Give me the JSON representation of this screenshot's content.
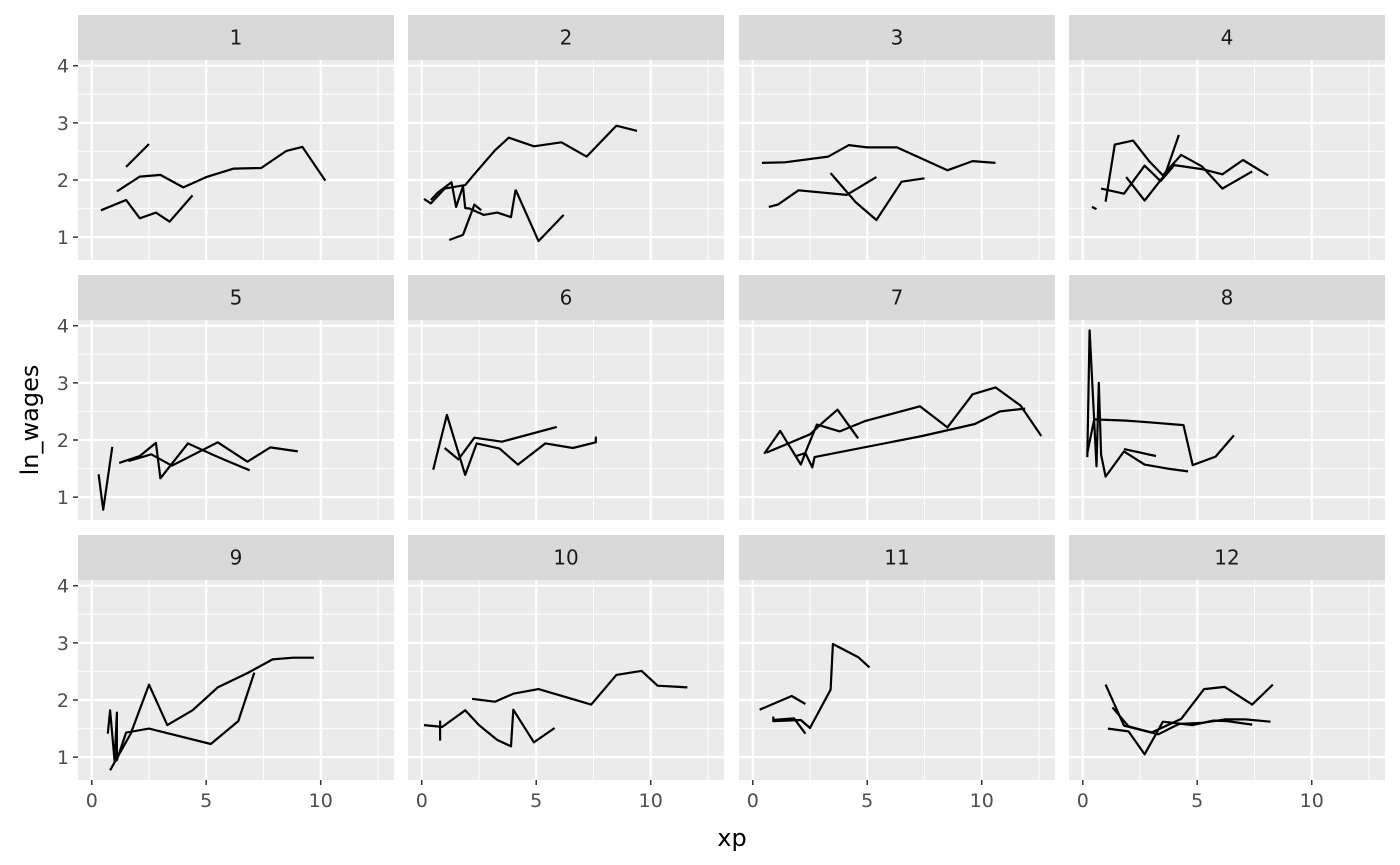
{
  "chart_data": {
    "type": "line",
    "xlabel": "xp",
    "ylabel": "ln_wages",
    "xlim": [
      -0.6,
      13.2
    ],
    "ylim": [
      0.6,
      4.1
    ],
    "x_ticks": [
      0,
      5,
      10
    ],
    "y_ticks": [
      1,
      2,
      3,
      4
    ],
    "grid": true,
    "panel_background": "#EBEBEB",
    "strip_background": "#D9D9D9",
    "line_color": "#000000",
    "facets": [
      {
        "label": "1",
        "lines": [
          [
            [
              0.4,
              1.47
            ],
            [
              1.5,
              1.65
            ],
            [
              2.1,
              1.33
            ],
            [
              2.8,
              1.43
            ],
            [
              3.4,
              1.27
            ],
            [
              4.4,
              1.73
            ]
          ],
          [
            [
              1.1,
              1.8
            ],
            [
              2.1,
              2.06
            ],
            [
              3.0,
              2.09
            ],
            [
              4.0,
              1.87
            ],
            [
              5.0,
              2.05
            ],
            [
              6.2,
              2.2
            ],
            [
              7.4,
              2.21
            ],
            [
              8.5,
              2.51
            ],
            [
              9.2,
              2.58
            ],
            [
              10.2,
              1.99
            ]
          ],
          [
            [
              1.5,
              2.23
            ],
            [
              2.5,
              2.63
            ]
          ]
        ]
      },
      {
        "label": "2",
        "lines": [
          [
            [
              0.1,
              1.67
            ],
            [
              0.4,
              1.59
            ],
            [
              1.0,
              1.85
            ],
            [
              1.9,
              1.91
            ],
            [
              2.4,
              2.15
            ],
            [
              3.2,
              2.52
            ],
            [
              3.8,
              2.74
            ],
            [
              4.9,
              2.59
            ],
            [
              6.1,
              2.66
            ],
            [
              7.2,
              2.41
            ],
            [
              8.5,
              2.95
            ],
            [
              9.4,
              2.86
            ]
          ],
          [
            [
              0.4,
              1.65
            ],
            [
              0.7,
              1.78
            ],
            [
              1.3,
              1.96
            ],
            [
              1.5,
              1.53
            ],
            [
              1.8,
              1.89
            ],
            [
              1.9,
              1.51
            ],
            [
              2.1,
              1.5
            ],
            [
              2.7,
              1.39
            ],
            [
              3.3,
              1.43
            ],
            [
              3.9,
              1.35
            ],
            [
              4.1,
              1.83
            ]
          ],
          [
            [
              1.2,
              0.95
            ],
            [
              1.8,
              1.04
            ],
            [
              2.3,
              1.57
            ],
            [
              2.6,
              1.47
            ]
          ],
          [
            [
              4.1,
              1.83
            ],
            [
              5.1,
              0.93
            ],
            [
              6.2,
              1.39
            ]
          ]
        ]
      },
      {
        "label": "3",
        "lines": [
          [
            [
              0.4,
              2.3
            ],
            [
              1.4,
              2.31
            ],
            [
              3.3,
              2.41
            ],
            [
              4.2,
              2.61
            ],
            [
              5.0,
              2.57
            ],
            [
              6.3,
              2.57
            ],
            [
              8.5,
              2.17
            ],
            [
              9.6,
              2.33
            ],
            [
              10.6,
              2.3
            ]
          ],
          [
            [
              0.7,
              1.53
            ],
            [
              1.1,
              1.57
            ],
            [
              2.0,
              1.82
            ],
            [
              4.1,
              1.74
            ],
            [
              5.4,
              2.05
            ]
          ],
          [
            [
              3.4,
              2.12
            ],
            [
              4.5,
              1.61
            ],
            [
              5.4,
              1.3
            ],
            [
              6.5,
              1.97
            ],
            [
              7.5,
              2.03
            ]
          ]
        ]
      },
      {
        "label": "4",
        "lines": [
          [
            [
              0.4,
              1.53
            ],
            [
              0.6,
              1.49
            ]
          ],
          [
            [
              0.8,
              1.85
            ],
            [
              1.8,
              1.76
            ],
            [
              2.7,
              2.25
            ],
            [
              3.4,
              1.98
            ],
            [
              4.0,
              2.26
            ],
            [
              5.2,
              2.19
            ],
            [
              6.1,
              2.1
            ],
            [
              7.0,
              2.35
            ],
            [
              8.1,
              2.08
            ]
          ],
          [
            [
              1.0,
              1.62
            ],
            [
              1.4,
              2.62
            ],
            [
              2.2,
              2.69
            ],
            [
              2.9,
              2.33
            ],
            [
              3.5,
              2.08
            ],
            [
              4.3,
              2.44
            ],
            [
              5.2,
              2.24
            ],
            [
              6.1,
              1.85
            ],
            [
              7.4,
              2.15
            ]
          ],
          [
            [
              1.9,
              2.05
            ],
            [
              2.7,
              1.64
            ],
            [
              3.6,
              2.1
            ],
            [
              4.2,
              2.79
            ]
          ]
        ]
      },
      {
        "label": "5",
        "lines": [
          [
            [
              0.3,
              1.4
            ],
            [
              0.5,
              0.78
            ],
            [
              0.9,
              1.88
            ]
          ],
          [
            [
              1.2,
              1.6
            ],
            [
              2.1,
              1.72
            ],
            [
              2.8,
              1.95
            ],
            [
              3.0,
              1.33
            ],
            [
              4.2,
              1.94
            ],
            [
              5.3,
              1.74
            ],
            [
              6.0,
              1.62
            ],
            [
              6.9,
              1.47
            ]
          ],
          [
            [
              1.6,
              1.63
            ],
            [
              2.6,
              1.75
            ],
            [
              3.5,
              1.55
            ],
            [
              5.5,
              1.96
            ],
            [
              6.8,
              1.62
            ],
            [
              7.8,
              1.87
            ],
            [
              9.0,
              1.8
            ]
          ]
        ]
      },
      {
        "label": "6",
        "lines": [
          [
            [
              0.5,
              1.48
            ],
            [
              1.1,
              2.44
            ],
            [
              1.9,
              1.39
            ],
            [
              2.4,
              1.94
            ],
            [
              3.4,
              1.85
            ],
            [
              4.2,
              1.57
            ],
            [
              5.4,
              1.94
            ],
            [
              6.6,
              1.86
            ],
            [
              7.6,
              1.96
            ],
            [
              7.6,
              2.06
            ]
          ],
          [
            [
              1.0,
              1.86
            ],
            [
              1.6,
              1.66
            ],
            [
              2.3,
              2.04
            ],
            [
              3.5,
              1.97
            ],
            [
              5.9,
              2.23
            ]
          ]
        ]
      },
      {
        "label": "7",
        "lines": [
          [
            [
              0.5,
              1.76
            ],
            [
              1.2,
              2.16
            ],
            [
              2.1,
              1.57
            ],
            [
              2.3,
              1.78
            ],
            [
              2.8,
              2.27
            ],
            [
              3.8,
              2.15
            ],
            [
              4.9,
              2.33
            ],
            [
              6.0,
              2.45
            ],
            [
              7.3,
              2.59
            ],
            [
              8.5,
              2.22
            ],
            [
              9.6,
              2.8
            ],
            [
              10.6,
              2.92
            ],
            [
              11.7,
              2.6
            ],
            [
              12.6,
              2.07
            ]
          ],
          [
            [
              0.6,
              1.78
            ],
            [
              2.5,
              2.1
            ],
            [
              3.1,
              2.32
            ],
            [
              3.7,
              2.53
            ],
            [
              4.6,
              2.03
            ]
          ],
          [
            [
              1.9,
              1.72
            ],
            [
              2.3,
              1.77
            ],
            [
              2.6,
              1.52
            ],
            [
              2.7,
              1.7
            ],
            [
              7.4,
              2.07
            ],
            [
              9.7,
              2.28
            ],
            [
              10.8,
              2.5
            ],
            [
              11.9,
              2.55
            ]
          ]
        ]
      },
      {
        "label": "8",
        "lines": [
          [
            [
              0.2,
              1.7
            ],
            [
              0.3,
              3.92
            ],
            [
              0.6,
              1.54
            ],
            [
              0.7,
              3.0
            ],
            [
              0.8,
              1.74
            ],
            [
              1.0,
              1.36
            ],
            [
              1.8,
              1.8
            ],
            [
              2.7,
              1.57
            ],
            [
              3.7,
              1.5
            ],
            [
              4.6,
              1.45
            ]
          ],
          [
            [
              0.2,
              1.77
            ],
            [
              0.5,
              2.36
            ],
            [
              1.9,
              2.34
            ],
            [
              2.9,
              2.31
            ],
            [
              4.4,
              2.26
            ],
            [
              4.8,
              1.56
            ],
            [
              5.8,
              1.71
            ],
            [
              6.6,
              2.08
            ]
          ],
          [
            [
              1.8,
              1.84
            ],
            [
              3.2,
              1.72
            ]
          ]
        ]
      },
      {
        "label": "9",
        "lines": [
          [
            [
              0.7,
              1.41
            ],
            [
              0.8,
              1.82
            ],
            [
              1.0,
              0.93
            ],
            [
              1.1,
              1.78
            ],
            [
              1.1,
              0.95
            ],
            [
              1.5,
              1.43
            ],
            [
              2.5,
              1.5
            ],
            [
              3.7,
              1.38
            ],
            [
              5.2,
              1.23
            ],
            [
              6.4,
              1.63
            ],
            [
              7.1,
              2.48
            ]
          ],
          [
            [
              0.8,
              0.77
            ],
            [
              1.7,
              1.41
            ],
            [
              2.5,
              2.27
            ],
            [
              3.3,
              1.56
            ],
            [
              4.4,
              1.82
            ],
            [
              5.5,
              2.22
            ],
            [
              6.8,
              2.47
            ],
            [
              7.9,
              2.71
            ],
            [
              8.8,
              2.74
            ],
            [
              9.7,
              2.74
            ]
          ]
        ]
      },
      {
        "label": "10",
        "lines": [
          [
            [
              0.1,
              1.56
            ],
            [
              0.9,
              1.53
            ],
            [
              1.9,
              1.82
            ],
            [
              2.5,
              1.56
            ],
            [
              3.3,
              1.3
            ],
            [
              3.9,
              1.19
            ],
            [
              4.0,
              1.83
            ],
            [
              4.9,
              1.26
            ],
            [
              5.8,
              1.51
            ]
          ],
          [
            [
              0.8,
              1.64
            ],
            [
              0.8,
              1.29
            ]
          ],
          [
            [
              2.2,
              2.02
            ],
            [
              3.2,
              1.97
            ],
            [
              4.0,
              2.11
            ],
            [
              5.1,
              2.19
            ],
            [
              7.4,
              1.92
            ],
            [
              8.5,
              2.44
            ],
            [
              9.6,
              2.51
            ],
            [
              10.3,
              2.25
            ],
            [
              11.6,
              2.22
            ]
          ]
        ]
      },
      {
        "label": "11",
        "lines": [
          [
            [
              0.3,
              1.83
            ],
            [
              1.7,
              2.07
            ],
            [
              2.3,
              1.93
            ]
          ],
          [
            [
              0.9,
              1.71
            ],
            [
              0.9,
              1.63
            ],
            [
              2.1,
              1.65
            ],
            [
              2.5,
              1.51
            ],
            [
              3.4,
              2.18
            ],
            [
              3.5,
              2.98
            ],
            [
              4.6,
              2.75
            ],
            [
              5.1,
              2.57
            ]
          ],
          [
            [
              0.9,
              1.65
            ],
            [
              1.8,
              1.68
            ],
            [
              2.3,
              1.41
            ]
          ]
        ]
      },
      {
        "label": "12",
        "lines": [
          [
            [
              1.0,
              2.27
            ],
            [
              1.8,
              1.55
            ],
            [
              3.0,
              1.43
            ],
            [
              4.3,
              1.67
            ],
            [
              5.3,
              2.19
            ],
            [
              6.2,
              2.23
            ],
            [
              7.4,
              1.92
            ],
            [
              8.3,
              2.27
            ]
          ],
          [
            [
              1.1,
              1.5
            ],
            [
              2.0,
              1.45
            ],
            [
              2.7,
              1.05
            ],
            [
              3.5,
              1.62
            ],
            [
              4.8,
              1.56
            ],
            [
              5.7,
              1.64
            ],
            [
              6.3,
              1.63
            ],
            [
              7.4,
              1.57
            ]
          ],
          [
            [
              1.3,
              1.87
            ],
            [
              2.0,
              1.54
            ],
            [
              3.3,
              1.4
            ],
            [
              4.2,
              1.58
            ],
            [
              5.2,
              1.6
            ],
            [
              6.2,
              1.66
            ],
            [
              7.1,
              1.66
            ],
            [
              8.2,
              1.62
            ]
          ]
        ]
      }
    ]
  }
}
